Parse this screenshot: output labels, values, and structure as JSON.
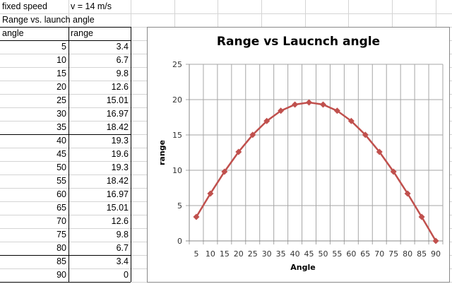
{
  "sheet": {
    "row1": {
      "a": "fixed speed",
      "b": "v = 14 m/s"
    },
    "row2": {
      "a": "Range vs. launch angle"
    },
    "header": {
      "angle": "angle",
      "range": "range"
    },
    "rows": [
      {
        "angle": "5",
        "range": "3.4"
      },
      {
        "angle": "10",
        "range": "6.7"
      },
      {
        "angle": "15",
        "range": "9.8"
      },
      {
        "angle": "20",
        "range": "12.6"
      },
      {
        "angle": "25",
        "range": "15.01"
      },
      {
        "angle": "30",
        "range": "16.97"
      },
      {
        "angle": "35",
        "range": "18.42"
      },
      {
        "angle": "40",
        "range": "19.3"
      },
      {
        "angle": "45",
        "range": "19.6"
      },
      {
        "angle": "50",
        "range": "19.3"
      },
      {
        "angle": "55",
        "range": "18.42"
      },
      {
        "angle": "60",
        "range": "16.97"
      },
      {
        "angle": "65",
        "range": "15.01"
      },
      {
        "angle": "70",
        "range": "12.6"
      },
      {
        "angle": "75",
        "range": "9.8"
      },
      {
        "angle": "80",
        "range": "6.7"
      },
      {
        "angle": "85",
        "range": "3.4"
      },
      {
        "angle": "90",
        "range": "0"
      }
    ]
  },
  "colors": {
    "series": "#c0504d",
    "gridline": "#a6a6a6",
    "cell_border": "#d4d4d4",
    "table_border": "#000000"
  },
  "chart_data": {
    "type": "line",
    "title": "Range vs Laucnch angle",
    "xlabel": "Angle",
    "ylabel": "range",
    "categories": [
      "5",
      "10",
      "15",
      "20",
      "25",
      "30",
      "35",
      "40",
      "45",
      "50",
      "55",
      "60",
      "65",
      "70",
      "75",
      "80",
      "85",
      "90"
    ],
    "series": [
      {
        "name": "range",
        "values": [
          3.4,
          6.7,
          9.8,
          12.6,
          15.01,
          16.97,
          18.42,
          19.3,
          19.6,
          19.3,
          18.42,
          16.97,
          15.01,
          12.6,
          9.8,
          6.7,
          3.4,
          0
        ],
        "marker": "diamond"
      }
    ],
    "ylim": [
      0,
      25
    ],
    "yticks": [
      "0",
      "5",
      "10",
      "15",
      "20",
      "25"
    ],
    "grid": {
      "horizontal": true,
      "vertical": true
    },
    "legend": "none"
  }
}
